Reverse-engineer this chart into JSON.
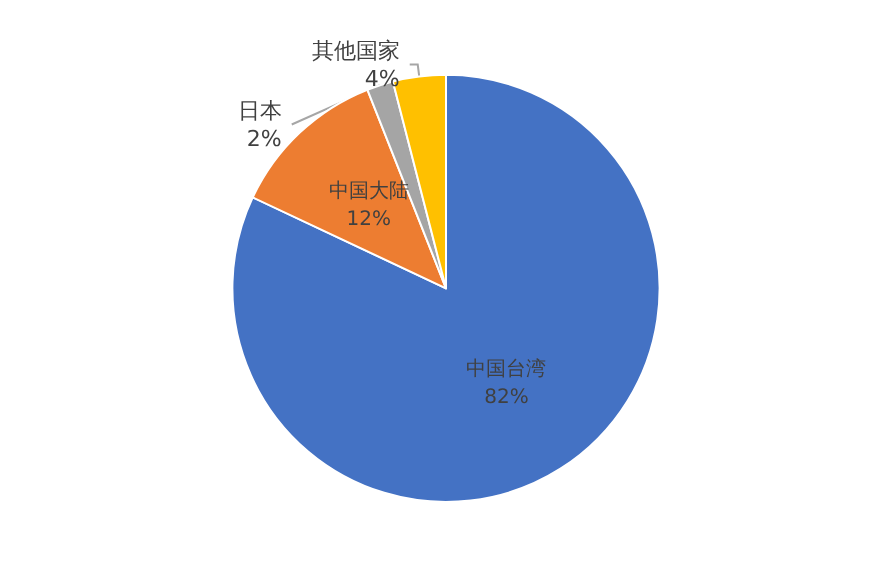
{
  "chart_data": {
    "type": "pie",
    "categories": [
      "中国台湾",
      "中国大陆",
      "日本",
      "其他国家"
    ],
    "values": [
      82,
      12,
      2,
      4
    ],
    "value_labels": [
      "82%",
      "12%",
      "2%",
      "4%"
    ],
    "colors": [
      "#4472c4",
      "#ed7d31",
      "#a5a5a5",
      "#ffc000"
    ],
    "legend": false
  }
}
